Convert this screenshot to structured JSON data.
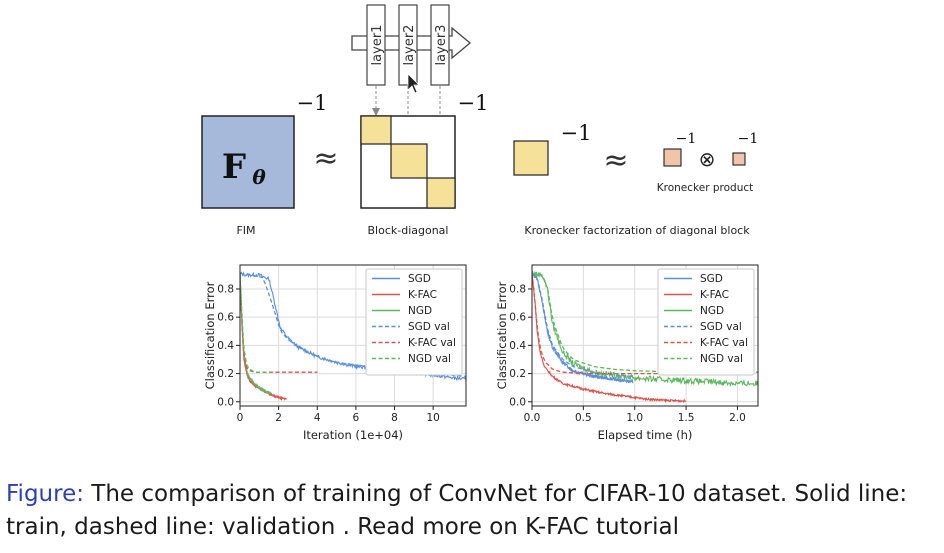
{
  "diagram": {
    "layers": [
      "layer1",
      "layer2",
      "layer3"
    ],
    "fim_symbol": "F",
    "fim_subscript": "θ",
    "inverse_exponent": "−1",
    "approx_symbol": "≈",
    "otimes_symbol": "⊗",
    "labels": {
      "fim": "FIM",
      "block_diagonal": "Block-diagonal",
      "kronecker_factorization": "Kronecker factorization of diagonal block",
      "kronecker_product": "Kronecker product"
    },
    "colors": {
      "fim_fill": "#a7b9db",
      "block_fill": "#f6e199",
      "kronecker_factor_fill": "#f2c4aa"
    }
  },
  "chart_data": [
    {
      "type": "line",
      "xlabel": "Iteration (1e+04)",
      "ylabel": "Classification Error",
      "xlim": [
        0,
        11.7
      ],
      "ylim": [
        -0.03,
        0.97
      ],
      "xticks": [
        0,
        2,
        4,
        6,
        8,
        10
      ],
      "yticks": [
        0.0,
        0.2,
        0.4,
        0.6,
        0.8
      ],
      "grid": true,
      "legend": "top-right",
      "series": [
        {
          "name": "SGD",
          "color": "#5b8fd9",
          "style": "solid",
          "noise": 0.012,
          "x": [
            0,
            0.3,
            1.0,
            1.5,
            1.8,
            2.1,
            2.5,
            3,
            4,
            5,
            6,
            7,
            8,
            9,
            10,
            11,
            11.7
          ],
          "y": [
            0.91,
            0.9,
            0.9,
            0.87,
            0.7,
            0.52,
            0.45,
            0.39,
            0.32,
            0.28,
            0.25,
            0.24,
            0.22,
            0.21,
            0.19,
            0.17,
            0.16
          ]
        },
        {
          "name": "K-FAC",
          "color": "#d9534f",
          "style": "solid",
          "noise": 0.005,
          "x": [
            0,
            0.1,
            0.2,
            0.35,
            0.5,
            0.8,
            1.2,
            1.6,
            2.0,
            2.4
          ],
          "y": [
            0.9,
            0.55,
            0.3,
            0.2,
            0.15,
            0.11,
            0.08,
            0.05,
            0.03,
            0.02
          ]
        },
        {
          "name": "NGD",
          "color": "#5cb85c",
          "style": "solid",
          "noise": 0.006,
          "x": [
            0,
            0.1,
            0.2,
            0.35,
            0.5,
            0.8,
            1.2,
            1.6
          ],
          "y": [
            0.91,
            0.6,
            0.35,
            0.22,
            0.17,
            0.12,
            0.08,
            0.06
          ]
        },
        {
          "name": "SGD val",
          "color": "#5b8fd9",
          "style": "dashed",
          "noise": 0,
          "x": [
            0,
            0.5,
            1.2,
            1.7,
            2.1,
            2.5,
            3,
            4,
            5,
            6,
            8,
            10,
            11.7
          ],
          "y": [
            0.91,
            0.9,
            0.88,
            0.68,
            0.5,
            0.44,
            0.39,
            0.32,
            0.28,
            0.26,
            0.23,
            0.2,
            0.18
          ]
        },
        {
          "name": "K-FAC val",
          "color": "#d9534f",
          "style": "dashed",
          "noise": 0,
          "x": [
            0,
            0.1,
            0.2,
            0.35,
            0.5,
            0.8,
            1.2,
            2.0,
            4.0
          ],
          "y": [
            0.9,
            0.55,
            0.32,
            0.24,
            0.22,
            0.21,
            0.21,
            0.21,
            0.21
          ]
        },
        {
          "name": "NGD val",
          "color": "#5cb85c",
          "style": "dashed",
          "noise": 0,
          "x": [
            0,
            0.1,
            0.2,
            0.35,
            0.5,
            0.8,
            1.2,
            1.6
          ],
          "y": [
            0.91,
            0.62,
            0.38,
            0.26,
            0.23,
            0.21,
            0.21,
            0.21
          ]
        }
      ]
    },
    {
      "type": "line",
      "xlabel": "Elapsed time (h)",
      "ylabel": "Classification Error",
      "xlim": [
        0,
        2.2
      ],
      "ylim": [
        -0.03,
        0.97
      ],
      "xticks": [
        0.0,
        0.5,
        1.0,
        1.5,
        2.0
      ],
      "yticks": [
        0.0,
        0.2,
        0.4,
        0.6,
        0.8
      ],
      "grid": true,
      "legend": "top-right",
      "series": [
        {
          "name": "SGD",
          "color": "#5b8fd9",
          "style": "solid",
          "noise": 0.012,
          "x": [
            0,
            0.05,
            0.1,
            0.15,
            0.2,
            0.3,
            0.4,
            0.5,
            0.6,
            0.7,
            0.8,
            0.9,
            0.98
          ],
          "y": [
            0.91,
            0.88,
            0.7,
            0.5,
            0.38,
            0.28,
            0.22,
            0.2,
            0.18,
            0.17,
            0.16,
            0.15,
            0.14
          ]
        },
        {
          "name": "K-FAC",
          "color": "#d9534f",
          "style": "solid",
          "noise": 0.007,
          "x": [
            0,
            0.03,
            0.05,
            0.08,
            0.12,
            0.2,
            0.3,
            0.5,
            0.7,
            0.9,
            1.1,
            1.3,
            1.5
          ],
          "y": [
            0.91,
            0.7,
            0.5,
            0.35,
            0.25,
            0.18,
            0.13,
            0.09,
            0.06,
            0.04,
            0.02,
            0.01,
            0.005
          ]
        },
        {
          "name": "NGD",
          "color": "#5cb85c",
          "style": "solid",
          "noise": 0.02,
          "x": [
            0,
            0.1,
            0.15,
            0.2,
            0.3,
            0.4,
            0.6,
            0.8,
            1.0,
            1.2,
            1.5,
            1.8,
            2.0,
            2.2
          ],
          "y": [
            0.91,
            0.9,
            0.8,
            0.55,
            0.35,
            0.27,
            0.21,
            0.19,
            0.17,
            0.16,
            0.15,
            0.14,
            0.13,
            0.13
          ]
        },
        {
          "name": "SGD val",
          "color": "#5b8fd9",
          "style": "dashed",
          "noise": 0,
          "x": [
            0,
            0.05,
            0.1,
            0.15,
            0.2,
            0.3,
            0.4,
            0.6,
            0.8,
            0.98
          ],
          "y": [
            0.91,
            0.88,
            0.72,
            0.52,
            0.4,
            0.3,
            0.25,
            0.21,
            0.19,
            0.18
          ]
        },
        {
          "name": "K-FAC val",
          "color": "#d9534f",
          "style": "dashed",
          "noise": 0,
          "x": [
            0,
            0.03,
            0.05,
            0.08,
            0.12,
            0.2,
            0.3,
            0.5,
            1.0,
            1.5
          ],
          "y": [
            0.91,
            0.72,
            0.52,
            0.38,
            0.29,
            0.23,
            0.21,
            0.2,
            0.2,
            0.2
          ]
        },
        {
          "name": "NGD val",
          "color": "#5cb85c",
          "style": "dashed",
          "noise": 0,
          "x": [
            0,
            0.1,
            0.15,
            0.2,
            0.3,
            0.4,
            0.6,
            0.8,
            1.0,
            1.5,
            2.0,
            2.2
          ],
          "y": [
            0.91,
            0.9,
            0.82,
            0.58,
            0.38,
            0.3,
            0.25,
            0.23,
            0.22,
            0.21,
            0.21,
            0.21
          ]
        }
      ]
    }
  ],
  "caption": {
    "label": "Figure:",
    "text": " The comparison of training of ConvNet for CIFAR-10 dataset. Solid line: train, dashed line: validation . Read more on K-FAC tutorial"
  }
}
